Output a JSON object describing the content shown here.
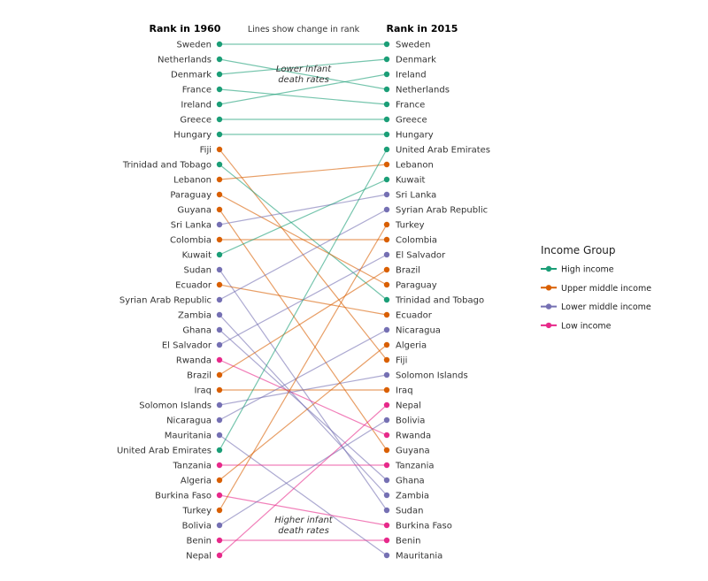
{
  "chart_data": {
    "type": "slope",
    "left_header": "Rank in 1960",
    "right_header": "Rank in 2015",
    "subtitle": "Lines show change in rank",
    "annotation_top": [
      "Lower infant",
      "death rates"
    ],
    "annotation_bottom": [
      "Higher infant",
      "death rates"
    ],
    "legend_title": "Income Group",
    "groups": [
      {
        "name": "High income",
        "color": "#1b9e77"
      },
      {
        "name": "Upper middle income",
        "color": "#d95f02"
      },
      {
        "name": "Lower middle income",
        "color": "#7570b3"
      },
      {
        "name": "Low income",
        "color": "#e7298a"
      }
    ],
    "countries": [
      {
        "name": "Sweden",
        "group": "High income",
        "rank_1960": 1,
        "rank_2015": 1
      },
      {
        "name": "Netherlands",
        "group": "High income",
        "rank_1960": 2,
        "rank_2015": 4
      },
      {
        "name": "Denmark",
        "group": "High income",
        "rank_1960": 3,
        "rank_2015": 2
      },
      {
        "name": "France",
        "group": "High income",
        "rank_1960": 4,
        "rank_2015": 5
      },
      {
        "name": "Ireland",
        "group": "High income",
        "rank_1960": 5,
        "rank_2015": 3
      },
      {
        "name": "Greece",
        "group": "High income",
        "rank_1960": 6,
        "rank_2015": 6
      },
      {
        "name": "Hungary",
        "group": "High income",
        "rank_1960": 7,
        "rank_2015": 7
      },
      {
        "name": "Fiji",
        "group": "Upper middle income",
        "rank_1960": 8,
        "rank_2015": 22
      },
      {
        "name": "Trinidad and Tobago",
        "group": "High income",
        "rank_1960": 9,
        "rank_2015": 18
      },
      {
        "name": "Lebanon",
        "group": "Upper middle income",
        "rank_1960": 10,
        "rank_2015": 9
      },
      {
        "name": "Paraguay",
        "group": "Upper middle income",
        "rank_1960": 11,
        "rank_2015": 17
      },
      {
        "name": "Guyana",
        "group": "Upper middle income",
        "rank_1960": 12,
        "rank_2015": 28
      },
      {
        "name": "Sri Lanka",
        "group": "Lower middle income",
        "rank_1960": 13,
        "rank_2015": 11
      },
      {
        "name": "Colombia",
        "group": "Upper middle income",
        "rank_1960": 14,
        "rank_2015": 14
      },
      {
        "name": "Kuwait",
        "group": "High income",
        "rank_1960": 15,
        "rank_2015": 10
      },
      {
        "name": "Sudan",
        "group": "Lower middle income",
        "rank_1960": 16,
        "rank_2015": 32
      },
      {
        "name": "Ecuador",
        "group": "Upper middle income",
        "rank_1960": 17,
        "rank_2015": 19
      },
      {
        "name": "Syrian Arab Republic",
        "group": "Lower middle income",
        "rank_1960": 18,
        "rank_2015": 12
      },
      {
        "name": "Zambia",
        "group": "Lower middle income",
        "rank_1960": 19,
        "rank_2015": 31
      },
      {
        "name": "Ghana",
        "group": "Lower middle income",
        "rank_1960": 20,
        "rank_2015": 30
      },
      {
        "name": "El Salvador",
        "group": "Lower middle income",
        "rank_1960": 21,
        "rank_2015": 15
      },
      {
        "name": "Rwanda",
        "group": "Low income",
        "rank_1960": 22,
        "rank_2015": 27
      },
      {
        "name": "Brazil",
        "group": "Upper middle income",
        "rank_1960": 23,
        "rank_2015": 16
      },
      {
        "name": "Iraq",
        "group": "Upper middle income",
        "rank_1960": 24,
        "rank_2015": 24
      },
      {
        "name": "Solomon Islands",
        "group": "Lower middle income",
        "rank_1960": 25,
        "rank_2015": 23
      },
      {
        "name": "Nicaragua",
        "group": "Lower middle income",
        "rank_1960": 26,
        "rank_2015": 20
      },
      {
        "name": "Mauritania",
        "group": "Lower middle income",
        "rank_1960": 27,
        "rank_2015": 35
      },
      {
        "name": "United Arab Emirates",
        "group": "High income",
        "rank_1960": 28,
        "rank_2015": 8
      },
      {
        "name": "Tanzania",
        "group": "Low income",
        "rank_1960": 29,
        "rank_2015": 29
      },
      {
        "name": "Algeria",
        "group": "Upper middle income",
        "rank_1960": 30,
        "rank_2015": 21
      },
      {
        "name": "Burkina Faso",
        "group": "Low income",
        "rank_1960": 31,
        "rank_2015": 33
      },
      {
        "name": "Turkey",
        "group": "Upper middle income",
        "rank_1960": 32,
        "rank_2015": 13
      },
      {
        "name": "Bolivia",
        "group": "Lower middle income",
        "rank_1960": 33,
        "rank_2015": 26
      },
      {
        "name": "Benin",
        "group": "Low income",
        "rank_1960": 34,
        "rank_2015": 34
      },
      {
        "name": "Nepal",
        "group": "Low income",
        "rank_1960": 35,
        "rank_2015": 25
      }
    ]
  }
}
